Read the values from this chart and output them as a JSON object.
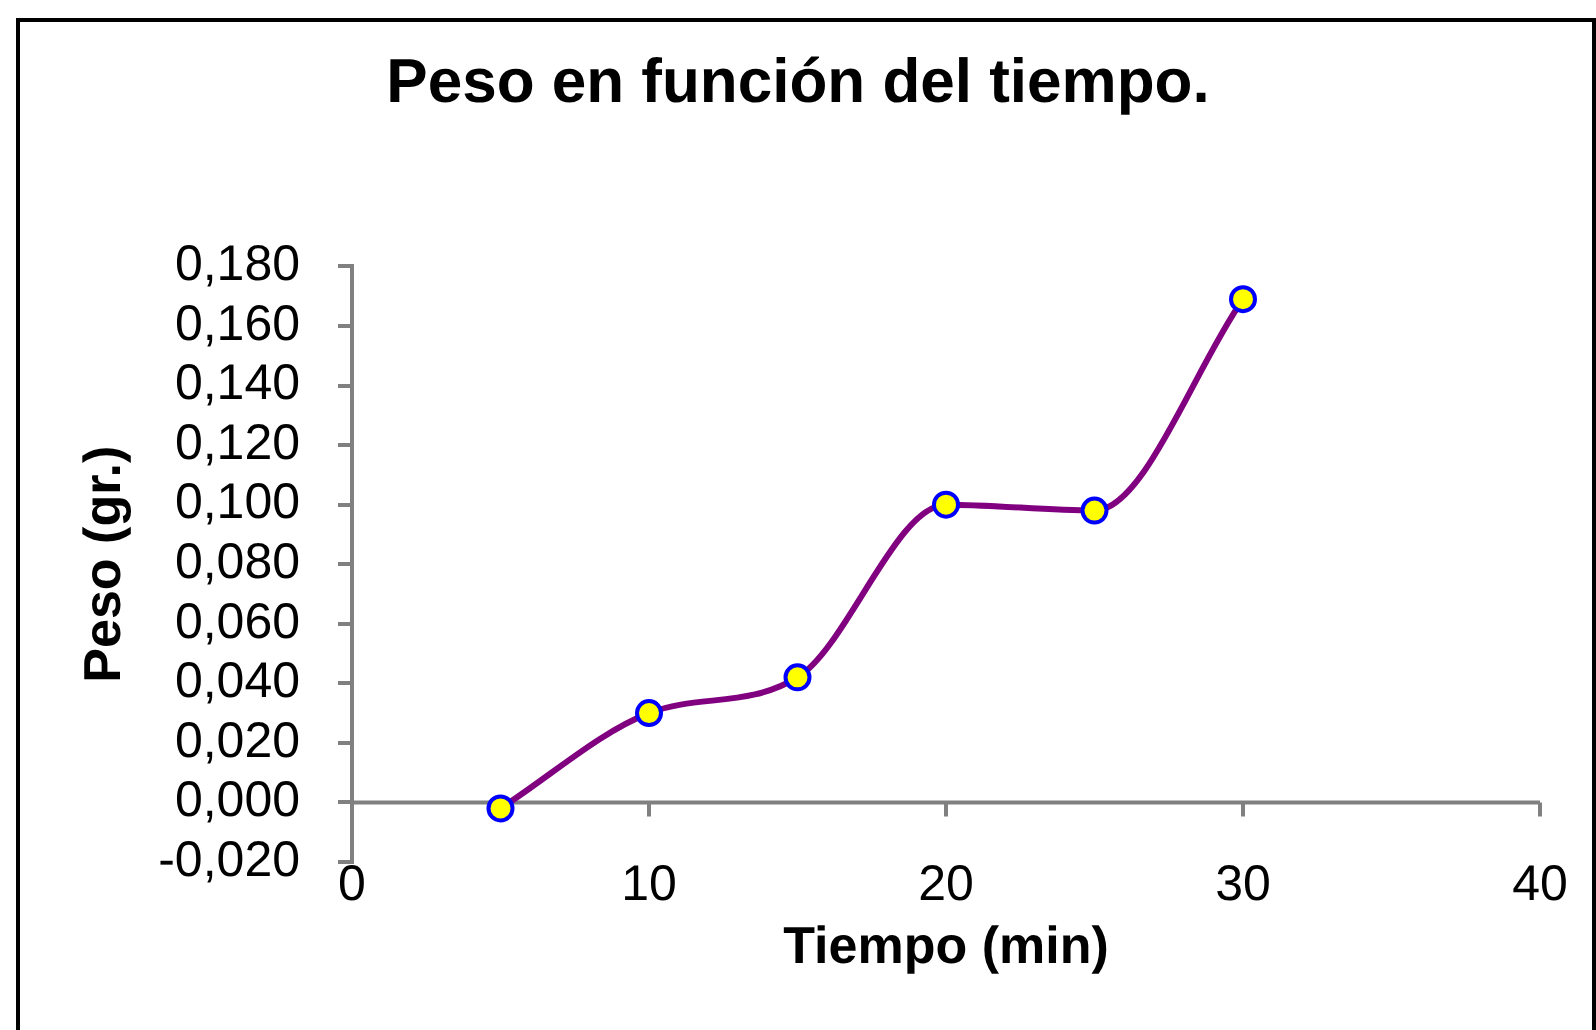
{
  "chart_data": {
    "type": "line",
    "title": "Peso en función del tiempo.",
    "xlabel": "Tiempo (min)",
    "ylabel": "Peso (gr.)",
    "x": [
      5,
      10,
      15,
      20,
      25,
      30
    ],
    "series": [
      {
        "color": "#800080",
        "colors": [
          "#ffff00",
          "#ffff00",
          "#ffff00",
          "#ffff00",
          "#ffff00",
          "#ffff00"
        ],
        "values": [
          -0.002,
          0.03,
          0.042,
          0.1,
          0.098,
          0.169
        ]
      }
    ],
    "xlim": [
      0,
      40
    ],
    "xticks": [
      0,
      10,
      20,
      30,
      40
    ],
    "ylim": [
      -0.02,
      0.18
    ],
    "yticks": [
      {
        "value": -0.02,
        "label": "-0,020"
      },
      {
        "value": 0,
        "label": "0,000"
      },
      {
        "value": 0.02,
        "label": "0,020"
      },
      {
        "value": 0.04,
        "label": "0,040"
      },
      {
        "value": 0.06,
        "label": "0,060"
      },
      {
        "value": 0.08,
        "label": "0,080"
      },
      {
        "value": 0.1,
        "label": "0,100"
      },
      {
        "value": 0.12,
        "label": "0,120"
      },
      {
        "value": 0.14,
        "label": "0,140"
      },
      {
        "value": 0.16,
        "label": "0,160"
      },
      {
        "value": 0.18,
        "label": "0,180"
      }
    ],
    "marker": "circle",
    "line_style": "solid",
    "legend": false,
    "grid": false
  }
}
